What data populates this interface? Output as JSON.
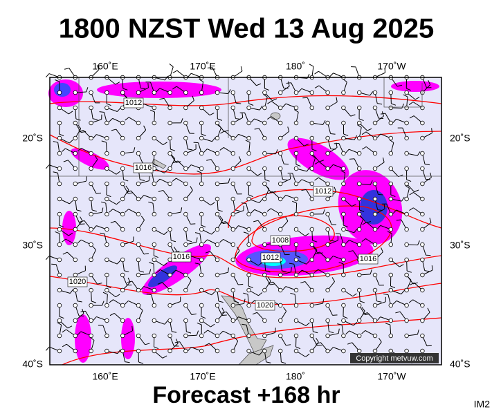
{
  "header": {
    "title": "1800 NZST Wed 13 Aug 2025"
  },
  "map": {
    "top_labels": [
      "160˚E",
      "170˚E",
      "180˚",
      "170˚W"
    ],
    "bottom_labels": [
      "160˚E",
      "170˚E",
      "180˚",
      "170˚W"
    ],
    "left_labels": [
      "20˚S",
      "30˚S",
      "40˚S"
    ],
    "right_labels": [
      "20˚S",
      "30˚S",
      "40˚S"
    ],
    "contour_labels": [
      "1012",
      "1016",
      "1012",
      "1008",
      "1012",
      "1016",
      "1016",
      "1020",
      "1020"
    ],
    "copyright": "Copyright metvuw.com"
  },
  "footer": {
    "forecast": "Forecast +168 hr",
    "code": "IM2"
  }
}
